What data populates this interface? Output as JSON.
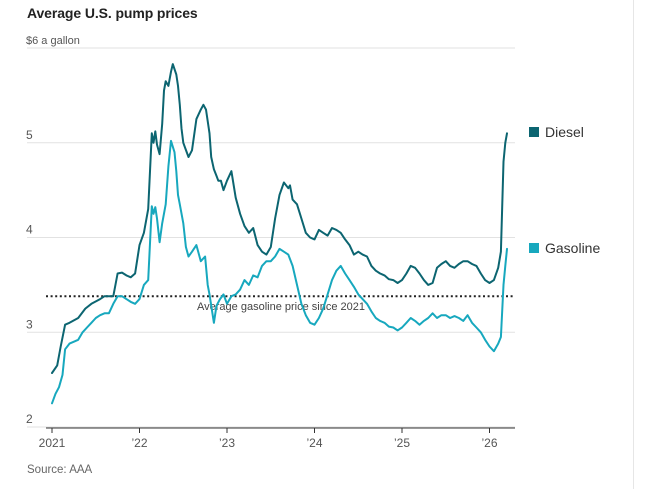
{
  "title": "Average U.S. pump prices",
  "source": "Source: AAA",
  "colors": {
    "diesel": "#0c6571",
    "gasoline": "#17a8be",
    "grid": "#e2e2e2",
    "text": "#555555",
    "reference": "#222222"
  },
  "chart_data": {
    "type": "line",
    "title": "Average U.S. pump prices",
    "ylabel": "$6 a gallon",
    "ylim": [
      2,
      6
    ],
    "xlim": [
      2021.0,
      2026.28
    ],
    "y_ticks": [
      {
        "value": 6,
        "label": "$6 a gallon"
      },
      {
        "value": 5,
        "label": "5"
      },
      {
        "value": 4,
        "label": "4"
      },
      {
        "value": 3,
        "label": "3"
      },
      {
        "value": 2,
        "label": "2"
      }
    ],
    "x_ticks": [
      {
        "value": 2021,
        "label": "2021"
      },
      {
        "value": 2022,
        "label": "’22"
      },
      {
        "value": 2023,
        "label": "’23"
      },
      {
        "value": 2024,
        "label": "’24"
      },
      {
        "value": 2025,
        "label": "’25"
      },
      {
        "value": 2026,
        "label": "’26"
      }
    ],
    "reference_line": {
      "value": 3.38,
      "label": "Average gasoline price since 2021"
    },
    "series": [
      {
        "name": "Diesel",
        "x": [
          2021.0,
          2021.06,
          2021.1,
          2021.15,
          2021.2,
          2021.3,
          2021.38,
          2021.45,
          2021.55,
          2021.6,
          2021.7,
          2021.75,
          2021.8,
          2021.85,
          2021.9,
          2021.95,
          2022.0,
          2022.05,
          2022.1,
          2022.14,
          2022.16,
          2022.18,
          2022.2,
          2022.23,
          2022.26,
          2022.28,
          2022.3,
          2022.33,
          2022.36,
          2022.38,
          2022.42,
          2022.44,
          2022.46,
          2022.48,
          2022.5,
          2022.52,
          2022.56,
          2022.6,
          2022.65,
          2022.7,
          2022.73,
          2022.76,
          2022.8,
          2022.82,
          2022.85,
          2022.88,
          2022.9,
          2022.93,
          2022.96,
          2023.0,
          2023.05,
          2023.1,
          2023.15,
          2023.2,
          2023.25,
          2023.3,
          2023.35,
          2023.4,
          2023.45,
          2023.5,
          2023.55,
          2023.6,
          2023.65,
          2023.7,
          2023.72,
          2023.75,
          2023.8,
          2023.85,
          2023.9,
          2023.95,
          2024.0,
          2024.05,
          2024.1,
          2024.15,
          2024.2,
          2024.25,
          2024.3,
          2024.35,
          2024.4,
          2024.45,
          2024.5,
          2024.55,
          2024.6,
          2024.65,
          2024.7,
          2024.75,
          2024.8,
          2024.85,
          2024.9,
          2024.95,
          2025.0,
          2025.05,
          2025.1,
          2025.15,
          2025.2,
          2025.25,
          2025.3,
          2025.35,
          2025.4,
          2025.45,
          2025.5,
          2025.55,
          2025.6,
          2025.65,
          2025.7,
          2025.75,
          2025.8,
          2025.85,
          2025.9,
          2025.95,
          2026.0,
          2026.05,
          2026.1,
          2026.13,
          2026.16,
          2026.18,
          2026.2
        ],
        "values": [
          2.57,
          2.65,
          2.85,
          3.08,
          3.1,
          3.15,
          3.25,
          3.3,
          3.35,
          3.38,
          3.38,
          3.62,
          3.63,
          3.6,
          3.58,
          3.62,
          3.92,
          4.05,
          4.3,
          5.1,
          5.0,
          5.12,
          4.98,
          4.88,
          5.2,
          5.55,
          5.65,
          5.6,
          5.75,
          5.83,
          5.72,
          5.6,
          5.4,
          5.15,
          5.0,
          4.95,
          4.85,
          4.92,
          5.25,
          5.35,
          5.4,
          5.35,
          5.1,
          4.85,
          4.72,
          4.65,
          4.6,
          4.6,
          4.5,
          4.6,
          4.7,
          4.42,
          4.25,
          4.12,
          4.05,
          4.1,
          3.92,
          3.85,
          3.82,
          3.9,
          4.2,
          4.45,
          4.58,
          4.52,
          4.55,
          4.4,
          4.35,
          4.2,
          4.05,
          4.0,
          3.98,
          4.08,
          4.05,
          4.02,
          4.1,
          4.08,
          4.05,
          3.98,
          3.92,
          3.82,
          3.85,
          3.82,
          3.8,
          3.7,
          3.65,
          3.62,
          3.6,
          3.56,
          3.55,
          3.52,
          3.55,
          3.62,
          3.7,
          3.68,
          3.62,
          3.55,
          3.5,
          3.52,
          3.68,
          3.72,
          3.75,
          3.7,
          3.68,
          3.72,
          3.75,
          3.75,
          3.72,
          3.7,
          3.62,
          3.55,
          3.52,
          3.55,
          3.68,
          3.85,
          4.8,
          5.0,
          5.1
        ]
      },
      {
        "name": "Gasoline",
        "x": [
          2021.0,
          2021.04,
          2021.08,
          2021.12,
          2021.15,
          2021.2,
          2021.25,
          2021.3,
          2021.35,
          2021.4,
          2021.45,
          2021.5,
          2021.55,
          2021.6,
          2021.65,
          2021.7,
          2021.75,
          2021.8,
          2021.85,
          2021.9,
          2021.95,
          2022.0,
          2022.05,
          2022.1,
          2022.14,
          2022.16,
          2022.18,
          2022.2,
          2022.23,
          2022.26,
          2022.3,
          2022.33,
          2022.36,
          2022.4,
          2022.42,
          2022.44,
          2022.46,
          2022.5,
          2022.53,
          2022.56,
          2022.6,
          2022.65,
          2022.7,
          2022.75,
          2022.78,
          2022.8,
          2022.85,
          2022.88,
          2022.92,
          2022.96,
          2023.0,
          2023.05,
          2023.1,
          2023.15,
          2023.2,
          2023.25,
          2023.3,
          2023.35,
          2023.4,
          2023.45,
          2023.5,
          2023.55,
          2023.6,
          2023.65,
          2023.7,
          2023.75,
          2023.8,
          2023.85,
          2023.9,
          2023.95,
          2024.0,
          2024.05,
          2024.1,
          2024.15,
          2024.2,
          2024.25,
          2024.3,
          2024.35,
          2024.4,
          2024.45,
          2024.5,
          2024.55,
          2024.6,
          2024.65,
          2024.7,
          2024.75,
          2024.8,
          2024.85,
          2024.9,
          2024.95,
          2025.0,
          2025.05,
          2025.1,
          2025.15,
          2025.2,
          2025.25,
          2025.3,
          2025.35,
          2025.4,
          2025.45,
          2025.5,
          2025.55,
          2025.6,
          2025.65,
          2025.7,
          2025.75,
          2025.8,
          2025.85,
          2025.9,
          2025.95,
          2026.0,
          2026.05,
          2026.1,
          2026.13,
          2026.16,
          2026.18,
          2026.2
        ],
        "values": [
          2.25,
          2.35,
          2.42,
          2.55,
          2.82,
          2.88,
          2.9,
          2.92,
          3.0,
          3.05,
          3.1,
          3.15,
          3.18,
          3.2,
          3.2,
          3.3,
          3.38,
          3.38,
          3.35,
          3.32,
          3.3,
          3.35,
          3.5,
          3.55,
          4.33,
          4.25,
          4.32,
          4.2,
          3.95,
          4.15,
          4.35,
          4.75,
          5.02,
          4.9,
          4.7,
          4.45,
          4.35,
          4.15,
          3.9,
          3.8,
          3.85,
          3.92,
          3.75,
          3.8,
          3.5,
          3.4,
          3.1,
          3.28,
          3.35,
          3.4,
          3.3,
          3.38,
          3.4,
          3.45,
          3.55,
          3.5,
          3.6,
          3.58,
          3.7,
          3.75,
          3.75,
          3.8,
          3.88,
          3.85,
          3.82,
          3.7,
          3.5,
          3.3,
          3.18,
          3.1,
          3.08,
          3.15,
          3.25,
          3.4,
          3.55,
          3.65,
          3.7,
          3.62,
          3.55,
          3.48,
          3.4,
          3.35,
          3.3,
          3.22,
          3.15,
          3.12,
          3.1,
          3.06,
          3.05,
          3.02,
          3.05,
          3.1,
          3.15,
          3.12,
          3.08,
          3.12,
          3.15,
          3.2,
          3.15,
          3.18,
          3.18,
          3.15,
          3.17,
          3.15,
          3.12,
          3.18,
          3.1,
          3.05,
          3.0,
          2.92,
          2.85,
          2.8,
          2.88,
          2.95,
          3.5,
          3.7,
          3.88
        ]
      }
    ]
  }
}
